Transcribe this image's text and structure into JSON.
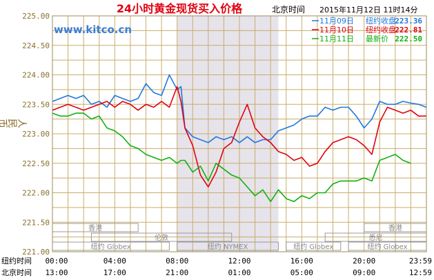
{
  "chart_data": {
    "type": "line",
    "title": "24小时黄金现货买入价格",
    "region_label": "北京时间",
    "timestamp": "2015年11月12日 11时14分",
    "watermark": "www.kitco.cn",
    "ylabel": "人民币/克",
    "ylim": [
      221.0,
      225.0
    ],
    "y_ticks": [
      "225.00",
      "224.50",
      "224.00",
      "223.50",
      "223.00",
      "222.50",
      "222.00",
      "221.50",
      "221.00"
    ],
    "x_row_labels": [
      "纽约时间",
      "北京时间"
    ],
    "x_ticks_ny": [
      "00:00",
      "04:00",
      "08:00",
      "12:00",
      "16:00",
      "20:00",
      "23:59"
    ],
    "x_ticks_bj": [
      "13:00",
      "17:00",
      "21:00",
      "01:00",
      "05:00",
      "09:00",
      "12:59"
    ],
    "sessions": [
      {
        "name": "香港",
        "start": 0.0,
        "end": 5.5,
        "row": 0
      },
      {
        "name": "香港",
        "start": 20.0,
        "end": 24.0,
        "row": 0
      },
      {
        "name": "伦敦",
        "start": 2.5,
        "end": 11.5,
        "row": 1
      },
      {
        "name": "悉尼",
        "start": 17.5,
        "end": 24.0,
        "row": 1
      },
      {
        "name": "纽约 Globex",
        "start": 0.0,
        "end": 7.5,
        "row": 2
      },
      {
        "name": "纽约 NYMEX",
        "start": 8.0,
        "end": 14.5,
        "row": 2
      },
      {
        "name": "纽约 Globex",
        "start": 15.0,
        "end": 18.5,
        "row": 2
      },
      {
        "name": "纽约 Globex",
        "start": 19.0,
        "end": 24.0,
        "row": 2
      }
    ],
    "shaded_hours": [
      8.0,
      14.5
    ],
    "legend": [
      {
        "date": "11月09日",
        "label": "纽约收盘",
        "value": "223.36",
        "color": "#1e78e0"
      },
      {
        "date": "11月10日",
        "label": "纽约收盘",
        "value": "222.81",
        "color": "#e00010"
      },
      {
        "date": "11月11日",
        "label": "最新价",
        "value": "222.50",
        "color": "#10b010"
      }
    ],
    "series": [
      {
        "name": "11月09日",
        "color": "#1e78e0",
        "x": [
          0.0,
          0.5,
          1.0,
          1.5,
          2.0,
          2.5,
          3.0,
          3.5,
          4.0,
          4.5,
          5.0,
          5.5,
          6.0,
          6.5,
          7.0,
          7.5,
          8.0,
          8.25,
          8.5,
          9.0,
          9.5,
          10.0,
          10.5,
          11.0,
          11.5,
          12.0,
          12.5,
          13.0,
          13.5,
          14.0,
          14.5,
          15.0,
          15.5,
          16.0,
          16.5,
          17.0,
          17.5,
          18.0,
          18.5,
          19.0,
          19.5,
          20.0,
          20.5,
          21.0,
          21.5,
          22.0,
          22.5,
          23.0,
          23.5,
          23.99
        ],
        "y": [
          223.55,
          223.6,
          223.65,
          223.6,
          223.65,
          223.5,
          223.55,
          223.45,
          223.65,
          223.6,
          223.55,
          223.6,
          223.85,
          223.7,
          223.65,
          224.0,
          223.75,
          223.8,
          223.1,
          222.95,
          222.9,
          222.85,
          222.95,
          222.9,
          222.95,
          222.85,
          222.95,
          222.85,
          222.9,
          222.9,
          223.05,
          223.1,
          223.15,
          223.25,
          223.3,
          223.3,
          223.45,
          223.4,
          223.45,
          223.45,
          223.3,
          223.1,
          223.25,
          223.55,
          223.5,
          223.5,
          223.55,
          223.52,
          223.5,
          223.45
        ]
      },
      {
        "name": "11月10日",
        "color": "#e00010",
        "x": [
          0.0,
          0.5,
          1.0,
          1.5,
          2.0,
          2.5,
          3.0,
          3.5,
          4.0,
          4.5,
          5.0,
          5.5,
          6.0,
          6.5,
          7.0,
          7.5,
          8.0,
          8.25,
          8.5,
          9.0,
          9.5,
          10.0,
          10.5,
          11.0,
          11.5,
          12.0,
          12.5,
          13.0,
          13.5,
          14.0,
          14.5,
          15.0,
          15.5,
          16.0,
          16.5,
          17.0,
          17.5,
          18.0,
          18.5,
          19.0,
          19.5,
          20.0,
          20.5,
          21.0,
          21.5,
          22.0,
          22.5,
          23.0,
          23.5,
          23.99
        ],
        "y": [
          223.4,
          223.45,
          223.5,
          223.45,
          223.4,
          223.45,
          223.5,
          223.55,
          223.45,
          223.55,
          223.5,
          223.4,
          223.5,
          223.45,
          223.55,
          223.45,
          223.8,
          223.55,
          223.1,
          222.8,
          222.3,
          222.1,
          222.35,
          222.75,
          222.85,
          223.2,
          223.5,
          223.1,
          222.95,
          222.85,
          222.7,
          222.65,
          222.55,
          222.6,
          222.45,
          222.5,
          222.7,
          222.85,
          222.9,
          222.95,
          222.9,
          222.8,
          222.65,
          223.2,
          223.45,
          223.4,
          223.35,
          223.4,
          223.3,
          223.3
        ]
      },
      {
        "name": "11月11日",
        "color": "#10b010",
        "x": [
          0.0,
          0.5,
          1.0,
          1.5,
          2.0,
          2.5,
          3.0,
          3.5,
          4.0,
          4.5,
          5.0,
          5.5,
          6.0,
          6.5,
          7.0,
          7.5,
          8.0,
          8.25,
          8.5,
          9.0,
          9.5,
          10.0,
          10.5,
          11.0,
          11.5,
          12.0,
          12.5,
          13.0,
          13.5,
          14.0,
          14.5,
          15.0,
          15.5,
          16.0,
          16.5,
          17.0,
          17.5,
          18.0,
          18.5,
          19.0,
          19.5,
          20.0,
          20.5,
          21.0,
          21.5,
          22.0,
          22.5,
          23.0
        ],
        "y": [
          223.35,
          223.3,
          223.3,
          223.35,
          223.35,
          223.25,
          223.3,
          223.1,
          223.05,
          222.95,
          222.8,
          222.75,
          222.65,
          222.6,
          222.55,
          222.6,
          222.5,
          222.55,
          222.55,
          222.35,
          222.45,
          222.2,
          222.5,
          222.4,
          222.3,
          222.25,
          222.1,
          221.95,
          222.05,
          221.85,
          222.05,
          221.9,
          221.85,
          221.95,
          221.9,
          222.0,
          222.0,
          222.15,
          222.2,
          222.2,
          222.2,
          222.25,
          222.2,
          222.55,
          222.6,
          222.65,
          222.55,
          222.5
        ]
      }
    ]
  }
}
